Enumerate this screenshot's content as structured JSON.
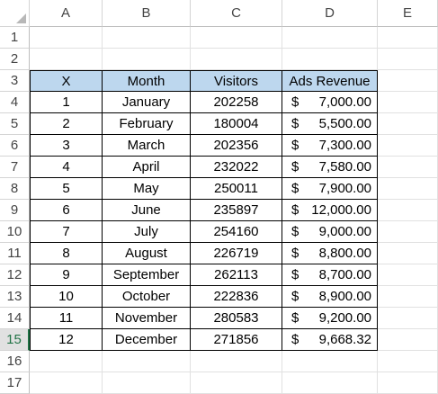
{
  "columns": [
    "A",
    "B",
    "C",
    "D",
    "E"
  ],
  "rows": [
    "1",
    "2",
    "3",
    "4",
    "5",
    "6",
    "7",
    "8",
    "9",
    "10",
    "11",
    "12",
    "13",
    "14",
    "15",
    "16",
    "17"
  ],
  "table": {
    "headers": [
      "X",
      "Month",
      "Visitors",
      "Ads Revenue"
    ],
    "currency_symbol": "$",
    "rows": [
      {
        "x": "1",
        "month": "January",
        "visitors": "202258",
        "revenue": "7,000.00"
      },
      {
        "x": "2",
        "month": "February",
        "visitors": "180004",
        "revenue": "5,500.00"
      },
      {
        "x": "3",
        "month": "March",
        "visitors": "202356",
        "revenue": "7,300.00"
      },
      {
        "x": "4",
        "month": "April",
        "visitors": "232022",
        "revenue": "7,580.00"
      },
      {
        "x": "5",
        "month": "May",
        "visitors": "250011",
        "revenue": "7,900.00"
      },
      {
        "x": "6",
        "month": "June",
        "visitors": "235897",
        "revenue": "12,000.00"
      },
      {
        "x": "7",
        "month": "July",
        "visitors": "254160",
        "revenue": "9,000.00"
      },
      {
        "x": "8",
        "month": "August",
        "visitors": "226719",
        "revenue": "8,800.00"
      },
      {
        "x": "9",
        "month": "September",
        "visitors": "262113",
        "revenue": "8,700.00"
      },
      {
        "x": "10",
        "month": "October",
        "visitors": "222836",
        "revenue": "8,900.00"
      },
      {
        "x": "11",
        "month": "November",
        "visitors": "280583",
        "revenue": "9,200.00"
      },
      {
        "x": "12",
        "month": "December",
        "visitors": "271856",
        "revenue": "9,668.32"
      }
    ]
  },
  "active_row": "15",
  "colors": {
    "header_fill": "#bdd7ee",
    "active_accent": "#217346"
  }
}
